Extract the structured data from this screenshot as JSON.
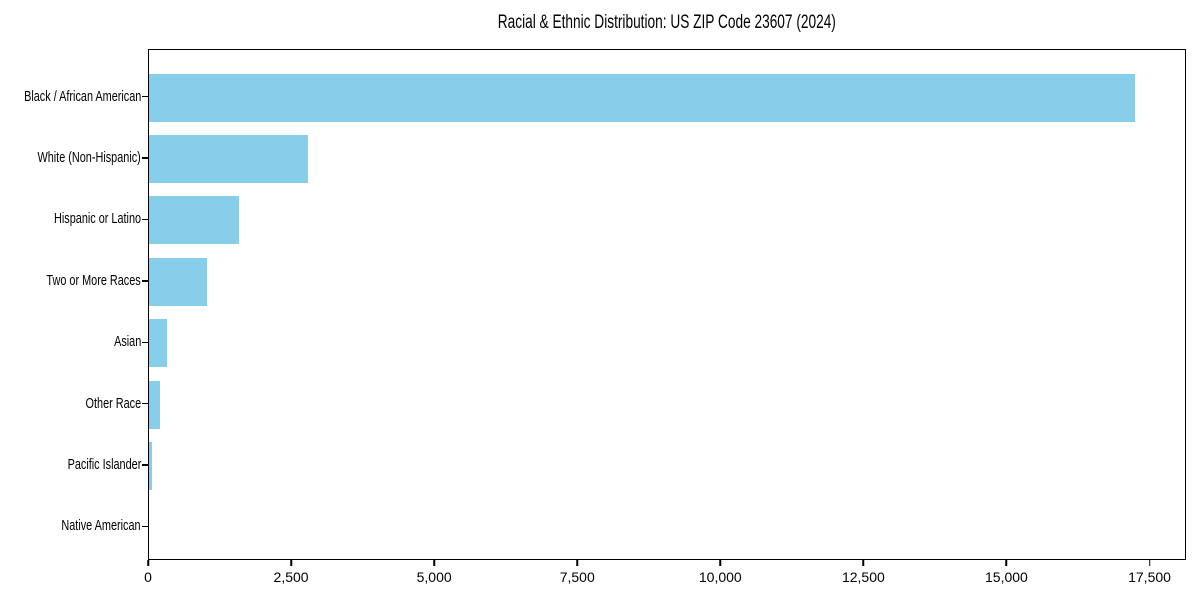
{
  "chart_data": {
    "type": "bar",
    "orientation": "horizontal",
    "title": "Racial & Ethnic Distribution: US ZIP Code 23607 (2024)",
    "categories": [
      "Black / African American",
      "White (Non-Hispanic)",
      "Hispanic or Latino",
      "Two or More Races",
      "Asian",
      "Other Race",
      "Pacific Islander",
      "Native American"
    ],
    "values": [
      17240,
      2780,
      1570,
      1020,
      320,
      185,
      60,
      0
    ],
    "xlabel": "",
    "ylabel": "",
    "xlim": [
      0,
      18120
    ],
    "x_ticks": [
      0,
      2500,
      5000,
      7500,
      10000,
      12500,
      15000,
      17500
    ],
    "x_tick_labels": [
      "0",
      "2,500",
      "5,000",
      "7,500",
      "10,000",
      "12,500",
      "15,000",
      "17,500"
    ],
    "bar_color": "#87CEEB",
    "text_color": "#000000",
    "grid": false,
    "legend_position": "none"
  }
}
